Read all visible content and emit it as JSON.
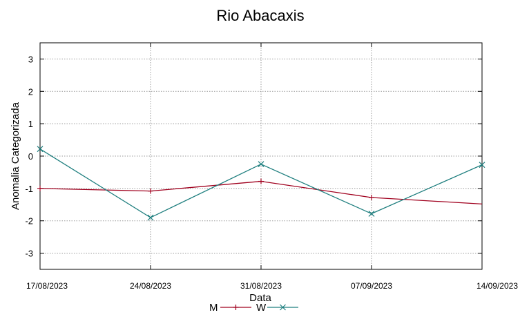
{
  "chart_data": {
    "type": "line",
    "title": "Rio Abacaxis",
    "xlabel": "Data",
    "ylabel": "Anomalia Categorizada",
    "categories": [
      "17/08/2023",
      "24/08/2023",
      "31/08/2023",
      "07/09/2023",
      "14/09/2023"
    ],
    "ylim": [
      -3.5,
      3.5
    ],
    "yticks": [
      -3,
      -2,
      -1,
      0,
      1,
      2,
      3
    ],
    "grid": true,
    "legend_position": "bottom",
    "series": [
      {
        "name": "M",
        "color": "#a0001e",
        "marker": "plus",
        "values": [
          -1.0,
          -1.08,
          -0.78,
          -1.28,
          -1.48
        ]
      },
      {
        "name": "W",
        "color": "#1f7f7f",
        "marker": "x",
        "values": [
          0.22,
          -1.9,
          -0.25,
          -1.78,
          -0.27
        ]
      }
    ]
  }
}
